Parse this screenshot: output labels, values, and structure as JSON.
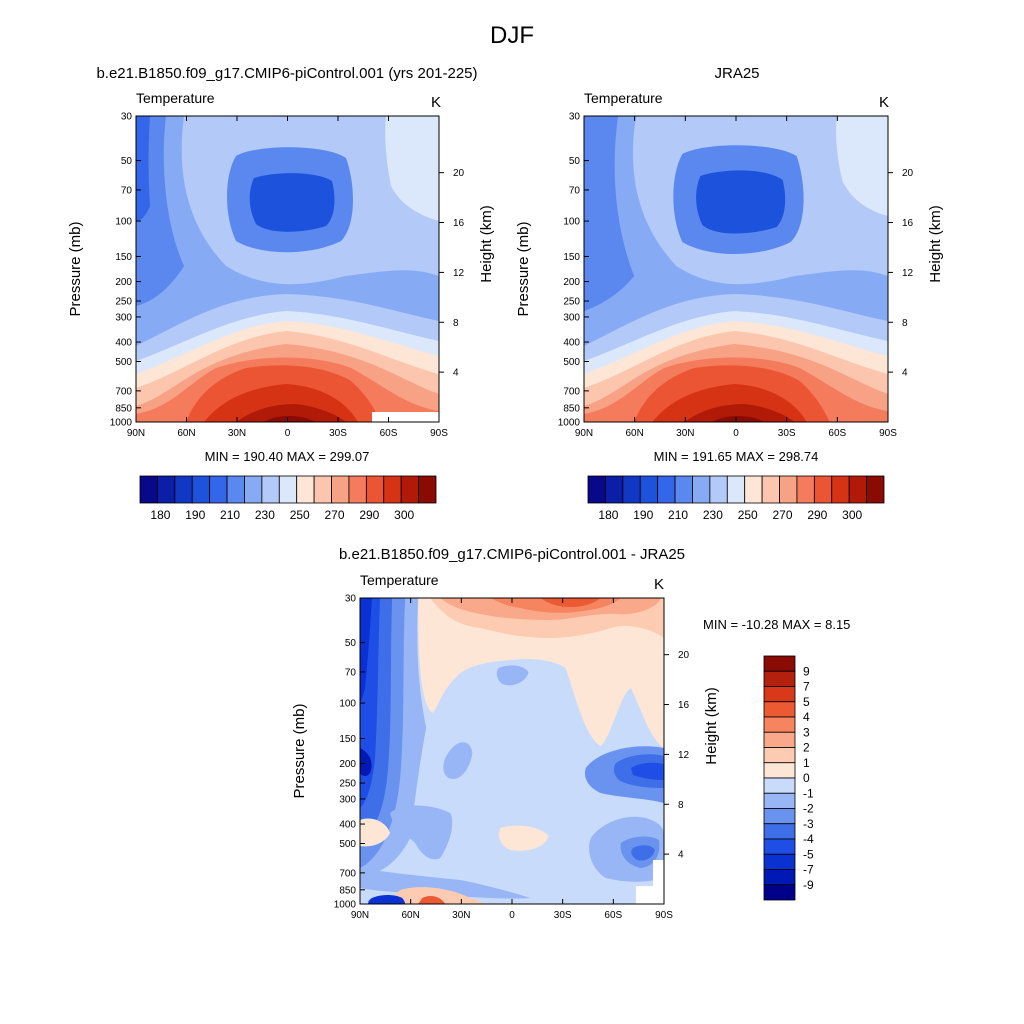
{
  "figure": {
    "title": "DJF"
  },
  "colors": {
    "abs_palette": [
      "#08088a",
      "#0b1ea8",
      "#1237c4",
      "#1c52dc",
      "#3366e8",
      "#5a88ef",
      "#86aaf4",
      "#b3c9f7",
      "#dbe7fb",
      "#fde6d6",
      "#fbc6ad",
      "#f8a285",
      "#f47b5c",
      "#ec5533",
      "#d63315",
      "#b21a08",
      "#8a0a04"
    ],
    "diff_palette": [
      "#00008b",
      "#0018b4",
      "#0a32d2",
      "#1f4ee6",
      "#3f6ee9",
      "#6a93f0",
      "#98b6f5",
      "#c9dbfa",
      "#fde6d6",
      "#fccbb1",
      "#f9a98a",
      "#f5845f",
      "#ec5a33",
      "#d9381a",
      "#b3200d",
      "#8a0a04"
    ]
  },
  "chart_data": [
    {
      "type": "contour",
      "title": "b.e21.B1850.f09_g17.CMIP6-piControl.001 (yrs 201-225)",
      "variable_label": "Temperature",
      "units": "K",
      "ylabel": "Pressure (mb)",
      "ylabel_right": "Height (km)",
      "x_ticks": [
        "90N",
        "60N",
        "30N",
        "0",
        "30S",
        "60S",
        "90S"
      ],
      "y_ticks": [
        "30",
        "50",
        "70",
        "100",
        "150",
        "200",
        "250",
        "300",
        "400",
        "500",
        "700",
        "850",
        "1000"
      ],
      "height_ticks": [
        "20",
        "16",
        "12",
        "8",
        "4"
      ],
      "min_max_text": "MIN = 190.40   MAX = 299.07",
      "min": 190.4,
      "max": 299.07,
      "colorbar_labels": [
        "180",
        "190",
        "210",
        "230",
        "250",
        "270",
        "290",
        "300"
      ],
      "contour_levels": [
        180,
        185,
        190,
        200,
        210,
        220,
        230,
        240,
        250,
        260,
        270,
        280,
        290,
        295,
        300
      ]
    },
    {
      "type": "contour",
      "title": "JRA25",
      "variable_label": "Temperature",
      "units": "K",
      "ylabel": "Pressure (mb)",
      "ylabel_right": "Height (km)",
      "x_ticks": [
        "90N",
        "60N",
        "30N",
        "0",
        "30S",
        "60S",
        "90S"
      ],
      "y_ticks": [
        "30",
        "50",
        "70",
        "100",
        "150",
        "200",
        "250",
        "300",
        "400",
        "500",
        "700",
        "850",
        "1000"
      ],
      "height_ticks": [
        "20",
        "16",
        "12",
        "8",
        "4"
      ],
      "min_max_text": "MIN = 191.65   MAX = 298.74",
      "min": 191.65,
      "max": 298.74,
      "colorbar_labels": [
        "180",
        "190",
        "210",
        "230",
        "250",
        "270",
        "290",
        "300"
      ],
      "contour_levels": [
        180,
        185,
        190,
        200,
        210,
        220,
        230,
        240,
        250,
        260,
        270,
        280,
        290,
        295,
        300
      ]
    },
    {
      "type": "contour",
      "title": "b.e21.B1850.f09_g17.CMIP6-piControl.001 - JRA25",
      "variable_label": "Temperature",
      "units": "K",
      "ylabel": "Pressure (mb)",
      "ylabel_right": "Height (km)",
      "x_ticks": [
        "90N",
        "60N",
        "30N",
        "0",
        "30S",
        "60S",
        "90S"
      ],
      "y_ticks": [
        "30",
        "50",
        "70",
        "100",
        "150",
        "200",
        "250",
        "300",
        "400",
        "500",
        "700",
        "850",
        "1000"
      ],
      "height_ticks": [
        "20",
        "16",
        "12",
        "8",
        "4"
      ],
      "min_max_text": "MIN = -10.28  MAX =   8.15",
      "min": -10.28,
      "max": 8.15,
      "colorbar_labels": [
        "9",
        "7",
        "5",
        "4",
        "3",
        "2",
        "1",
        "0",
        "-1",
        "-2",
        "-3",
        "-4",
        "-5",
        "-7",
        "-9"
      ],
      "contour_levels": [
        -9,
        -7,
        -5,
        -4,
        -3,
        -2,
        -1,
        0,
        1,
        2,
        3,
        4,
        5,
        7,
        9
      ]
    }
  ]
}
